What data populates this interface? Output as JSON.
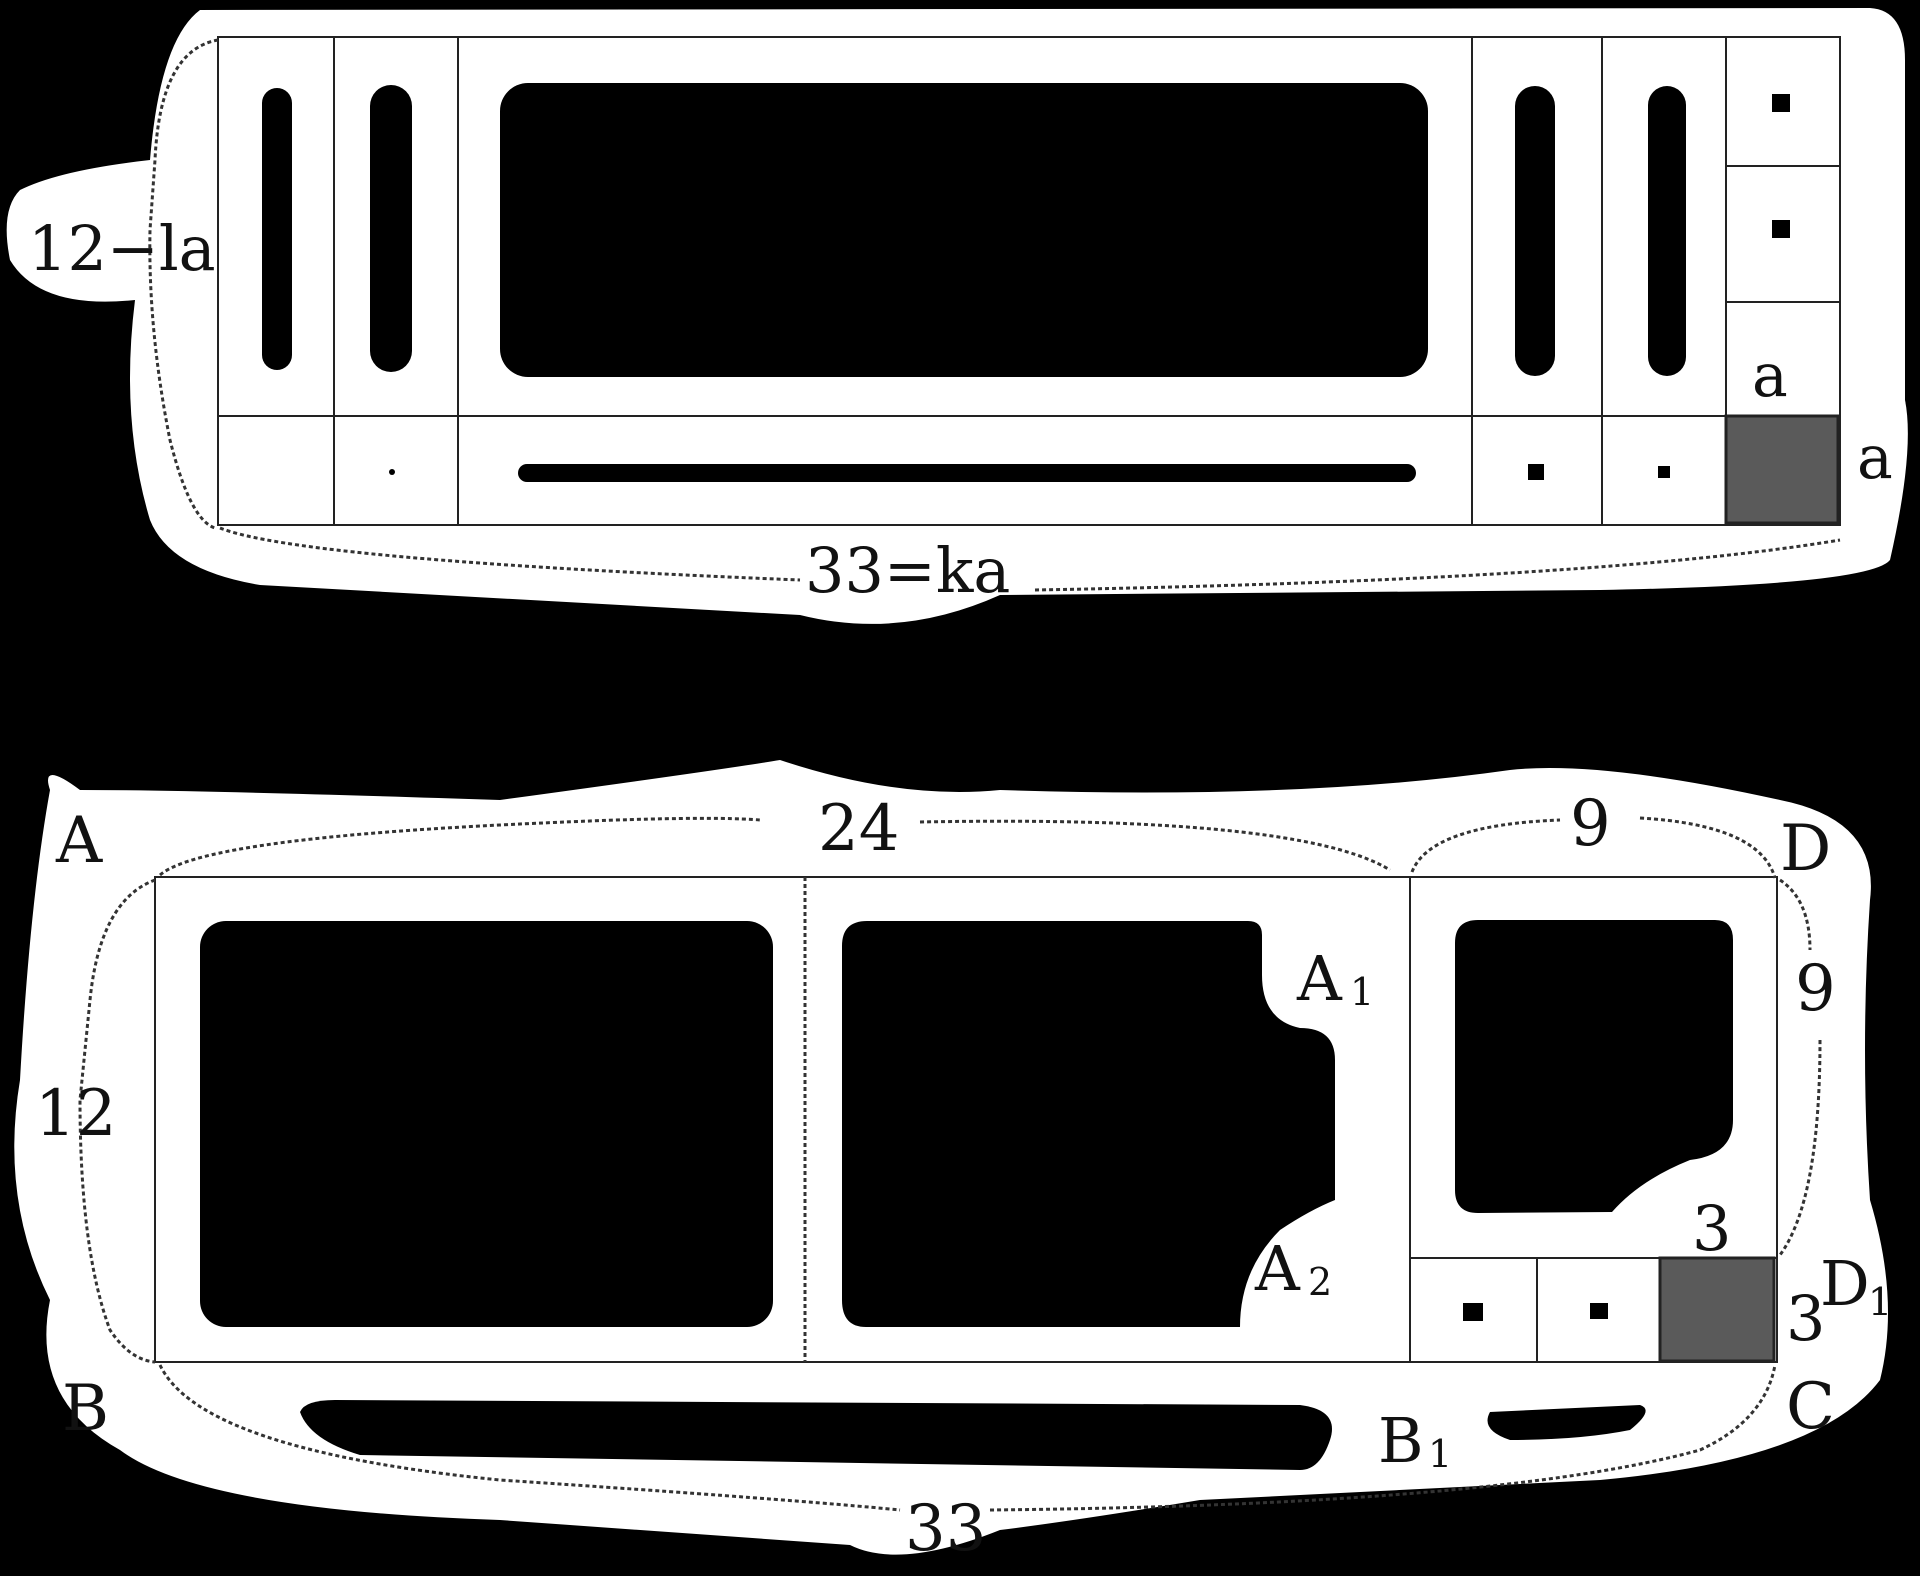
{
  "top_figure": {
    "height_label": "12−la",
    "width_label": "33=ka",
    "square_side_top": "a",
    "square_side_right": "a"
  },
  "bottom_figure": {
    "vertices": {
      "A": "A",
      "B": "B",
      "C": "C",
      "D": "D",
      "A1": "A",
      "A1_sub": "1",
      "A2": "A",
      "A2_sub": "2",
      "B1": "B",
      "B1_sub": "1",
      "D1": "D",
      "D1_sub": "1"
    },
    "lengths": {
      "top_left": "24",
      "top_right": "9",
      "left": "12",
      "right": "9",
      "bottom": "33",
      "small_square_top": "3",
      "small_square_right": "3"
    }
  },
  "colors": {
    "background": "#000000",
    "panel": "#ffffff",
    "line": "#222222",
    "shaded_square": "#5a5a5a"
  }
}
